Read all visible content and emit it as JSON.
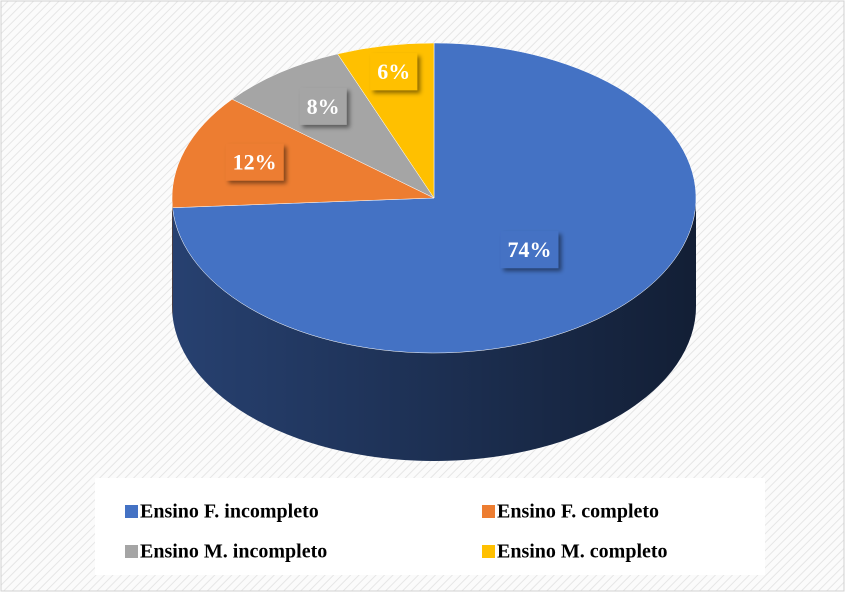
{
  "chart_data": {
    "type": "pie",
    "categories": [
      "Ensino F. incompleto",
      "Ensino F. completo",
      "Ensino M. incompleto",
      "Ensino M. completo"
    ],
    "values": [
      74,
      12,
      8,
      6
    ],
    "value_labels": [
      "74%",
      "12%",
      "8%",
      "6%"
    ],
    "colors": [
      "#4472c4",
      "#ed7d31",
      "#a5a5a5",
      "#ffc000"
    ],
    "legend": "bottom"
  }
}
